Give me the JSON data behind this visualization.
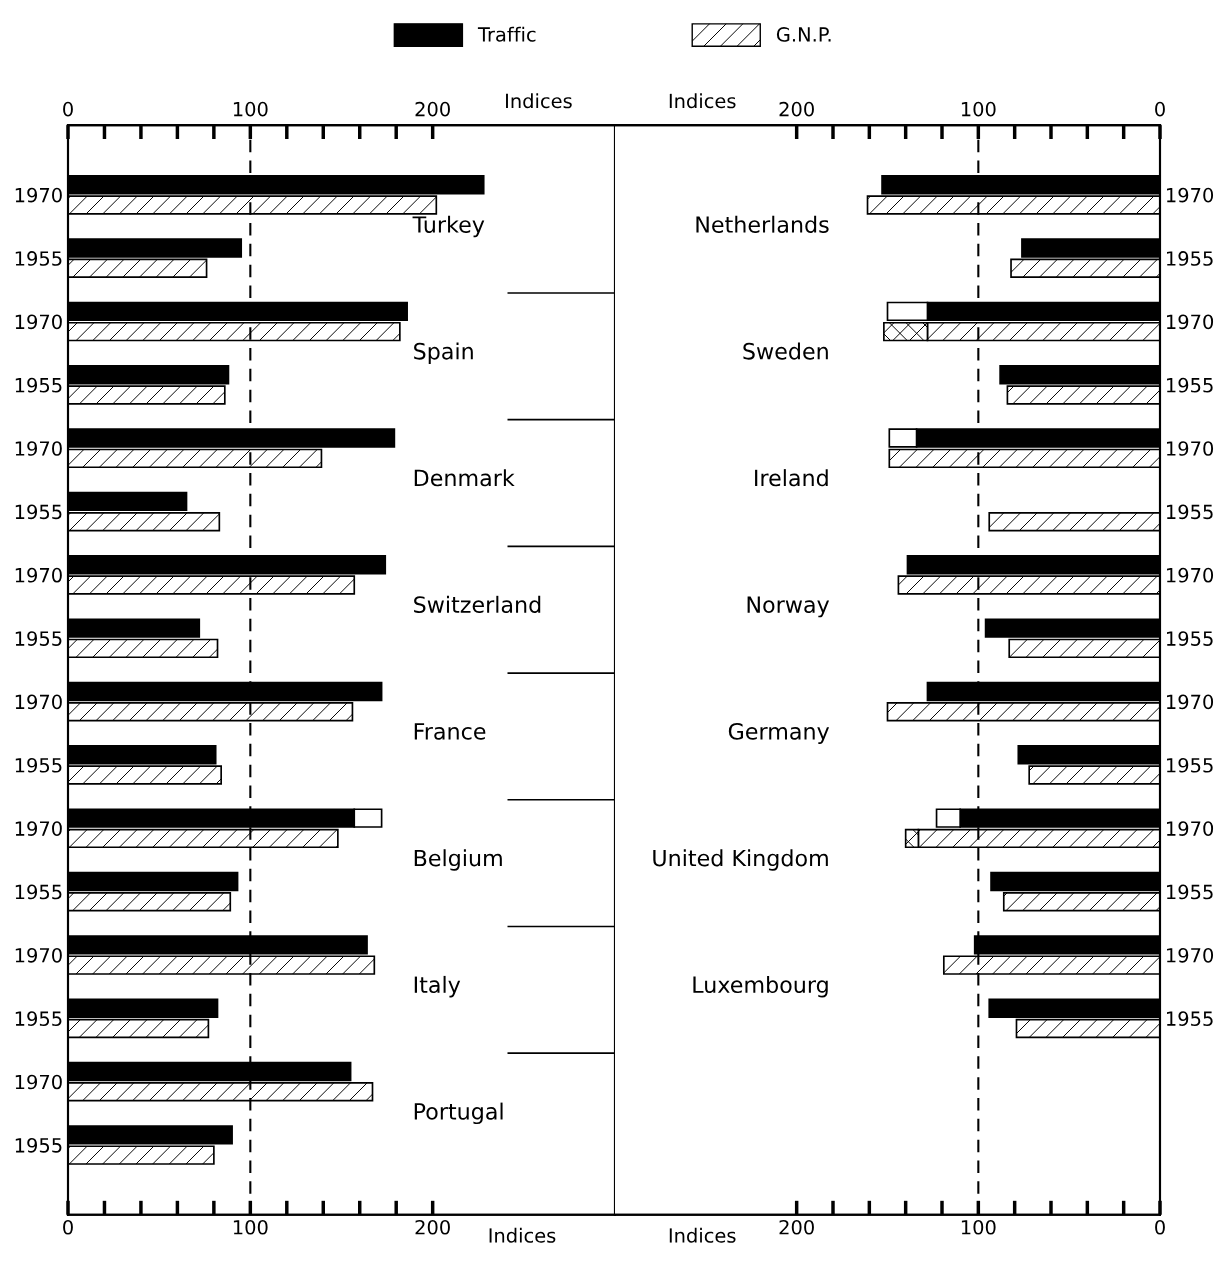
{
  "chart_data": [
    {
      "type": "bar",
      "orientation": "horizontal",
      "legend": "top",
      "categories": [
        "1970",
        "1955",
        "1970",
        "1955",
        "1970",
        "1955",
        "1970",
        "1955",
        "1970",
        "1955",
        "1970",
        "1955",
        "1970",
        "1955",
        "1970",
        "1955"
      ],
      "series": [
        {
          "name": "Traffic",
          "color": "#000000",
          "values": [
            228,
            95,
            186,
            88,
            179,
            65,
            174,
            72,
            172,
            81,
            157,
            93,
            164,
            82,
            155,
            90
          ]
        },
        {
          "color": "#ffffff",
          "values": [
            null,
            null,
            null,
            null,
            null,
            null,
            null,
            null,
            null,
            null,
            15,
            null,
            null,
            null,
            null,
            null
          ],
          "base": [
            null,
            null,
            null,
            null,
            null,
            null,
            null,
            null,
            null,
            null,
            157,
            null,
            null,
            null,
            null,
            null
          ]
        },
        {
          "name": "G.N.P.",
          "color": "#000000",
          "values": [
            202,
            76,
            182,
            86,
            139,
            83,
            157,
            82,
            156,
            84,
            148,
            89,
            168,
            77,
            167,
            80
          ]
        }
      ],
      "xlim": [
        0,
        300
      ],
      "xticks": [
        0,
        {
          "value": 20,
          "label": null
        },
        {
          "value": 40,
          "label": null
        },
        {
          "value": 60,
          "label": null
        },
        {
          "value": 80,
          "label": null
        },
        100,
        {
          "value": 120,
          "label": null
        },
        {
          "value": 140,
          "label": null
        },
        {
          "value": 160,
          "label": null
        },
        {
          "value": 180,
          "label": null
        },
        200
      ],
      "x2lim": [
        0,
        300
      ],
      "x2ticks": [
        0,
        {
          "value": 20,
          "label": null
        },
        {
          "value": 40,
          "label": null
        },
        {
          "value": 60,
          "label": null
        },
        {
          "value": 80,
          "label": null
        },
        100,
        {
          "value": 120,
          "label": null
        },
        {
          "value": 140,
          "label": null
        },
        {
          "value": 160,
          "label": null
        },
        {
          "value": 180,
          "label": null
        },
        200
      ],
      "xlabel": "Indices",
      "x2label": "Indices",
      "ref_lines": [
        {
          "axis": "x",
          "value": 100,
          "line_style": "dashed"
        }
      ],
      "annotations": [
        "Turkey",
        "Spain",
        "Denmark",
        "Switzerland",
        "France",
        "Belgium",
        "Italy",
        "Portugal"
      ]
    },
    {
      "type": "bar",
      "orientation": "horizontal",
      "categories": [
        "1970",
        "1955",
        "1970",
        "1955",
        "1970",
        "1955",
        "1970",
        "1955",
        "1970",
        "1955",
        "1970",
        "1955",
        "1970",
        "1955",
        null,
        null
      ],
      "series": [
        {
          "name": "Traffic",
          "color": "#000000",
          "values": [
            153,
            76,
            128,
            88,
            134,
            null,
            139,
            96,
            128,
            78,
            110,
            93,
            102,
            94,
            null,
            null
          ]
        },
        {
          "color": "#ffffff",
          "values": [
            null,
            null,
            22,
            null,
            15,
            null,
            null,
            null,
            null,
            null,
            13,
            null,
            null,
            null,
            null,
            null
          ],
          "base": [
            null,
            null,
            128,
            null,
            134,
            null,
            null,
            null,
            null,
            null,
            110,
            null,
            null,
            null,
            null,
            null
          ]
        },
        {
          "name": "G.N.P.",
          "color": "#000000",
          "values": [
            161,
            82,
            128,
            84,
            149,
            94,
            144,
            83,
            150,
            72,
            133,
            86,
            119,
            79,
            null,
            null
          ]
        },
        {
          "color": "#000000",
          "values": [
            null,
            null,
            24,
            null,
            null,
            null,
            null,
            null,
            null,
            null,
            7,
            null,
            null,
            null,
            null,
            null
          ],
          "base": [
            null,
            null,
            128,
            null,
            null,
            null,
            null,
            null,
            null,
            null,
            133,
            null,
            null,
            null,
            null,
            null
          ]
        }
      ],
      "xlim": [
        300,
        0
      ],
      "xticks": [
        {
          "value": 180,
          "label": null
        },
        {
          "value": 160,
          "label": null
        },
        {
          "value": 140,
          "label": null
        },
        {
          "value": 120,
          "label": null
        },
        {
          "value": 80,
          "label": null
        },
        {
          "value": 60,
          "label": null
        },
        {
          "value": 40,
          "label": null
        },
        {
          "value": 20,
          "label": null
        },
        200,
        100,
        0
      ],
      "x2lim": [
        300,
        0
      ],
      "x2ticks": [
        {
          "value": 180,
          "label": null
        },
        {
          "value": 160,
          "label": null
        },
        {
          "value": 140,
          "label": null
        },
        {
          "value": 120,
          "label": null
        },
        {
          "value": 80,
          "label": null
        },
        {
          "value": 60,
          "label": null
        },
        {
          "value": 40,
          "label": null
        },
        {
          "value": 20,
          "label": null
        },
        200,
        100,
        0
      ],
      "xlabel": "Indices",
      "x2label": "Indices",
      "ref_lines": [
        {
          "axis": "x",
          "value": 100,
          "line_style": "dashed"
        }
      ],
      "annotations": [
        "Netherlands",
        "Sweden",
        "Ireland",
        "Norway",
        "Germany",
        "United Kingdom",
        "Luxembourg"
      ]
    }
  ]
}
